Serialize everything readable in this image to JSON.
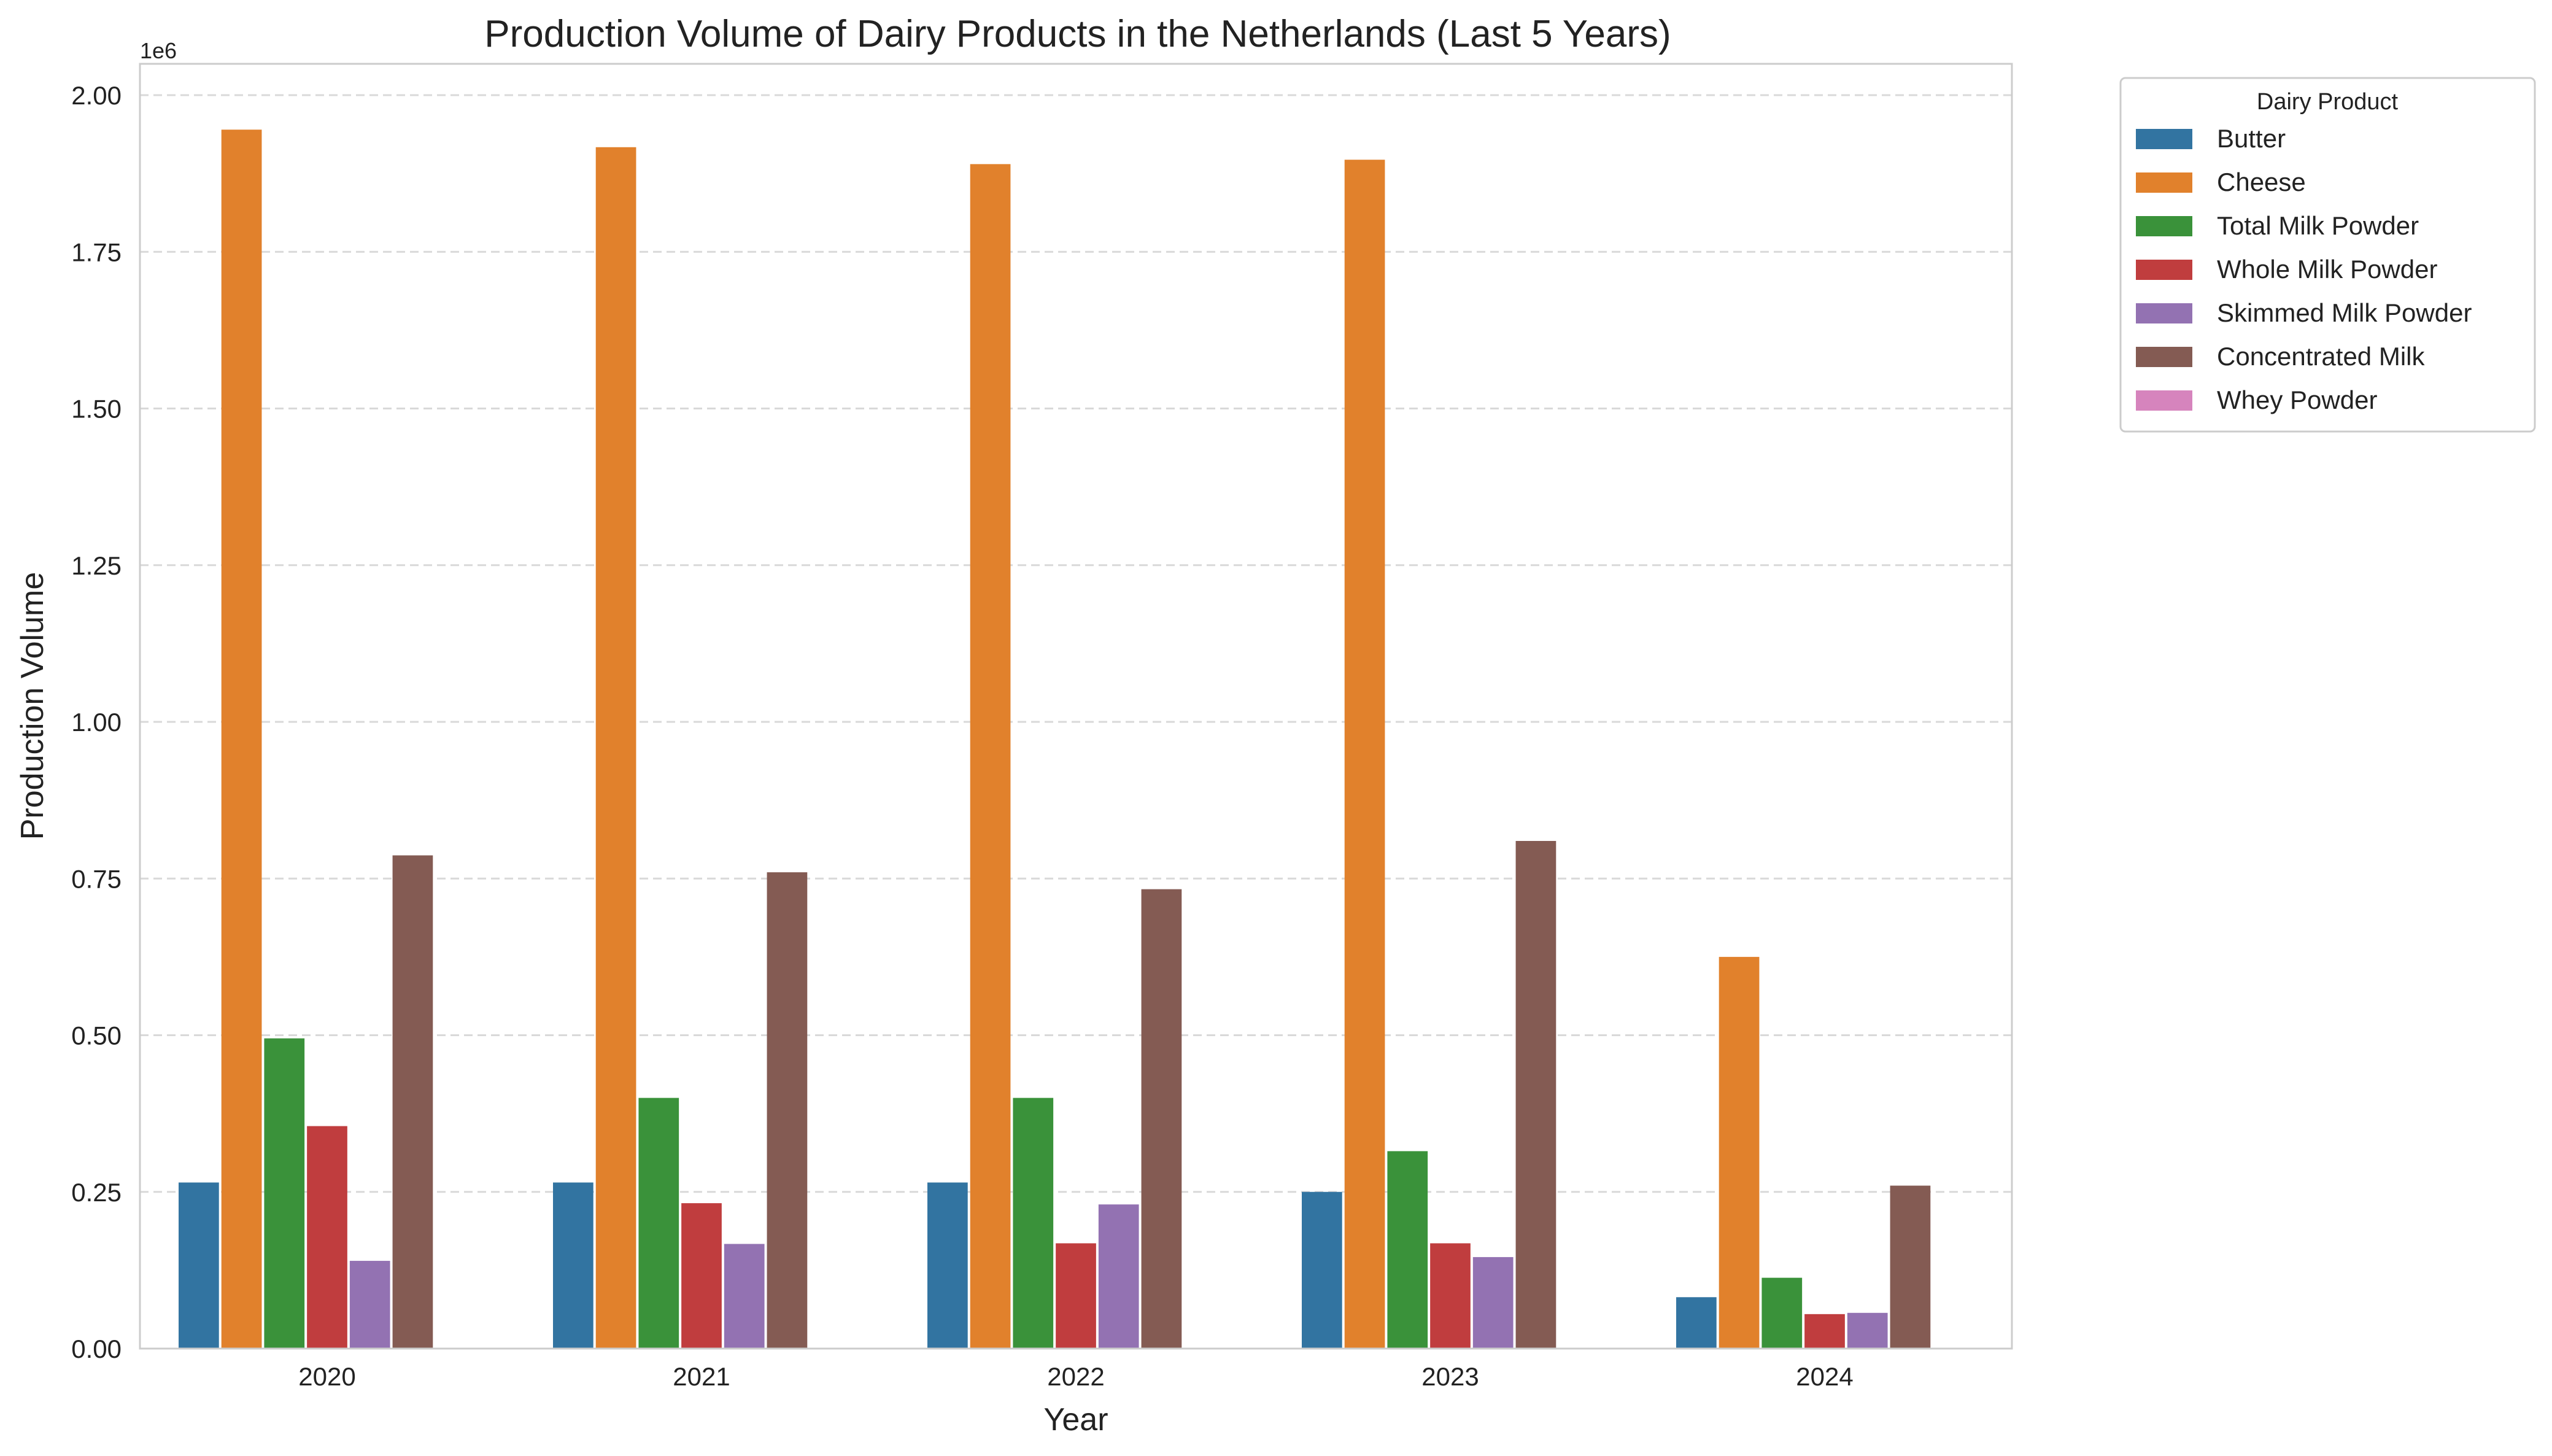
{
  "chart_data": {
    "type": "bar",
    "title": "Production Volume of Dairy Products in the Netherlands (Last 5 Years)",
    "xlabel": "Year",
    "ylabel": "Production Volume",
    "offset_label": "1e6",
    "categories": [
      "2020",
      "2021",
      "2022",
      "2023",
      "2024"
    ],
    "ylim": [
      0,
      2.05
    ],
    "yticks": [
      0.0,
      0.25,
      0.5,
      0.75,
      1.0,
      1.25,
      1.5,
      1.75,
      2.0
    ],
    "ytick_labels": [
      "0.00",
      "0.25",
      "0.50",
      "0.75",
      "1.00",
      "1.25",
      "1.50",
      "1.75",
      "2.00"
    ],
    "grid": "horizontal dashed",
    "legend": {
      "title": "Dairy Product",
      "placement": "outside upper-right"
    },
    "series": [
      {
        "name": "Butter",
        "color": "#3274a1",
        "values": [
          0.265,
          0.265,
          0.265,
          0.25,
          0.082
        ]
      },
      {
        "name": "Cheese",
        "color": "#e1812c",
        "values": [
          1.945,
          1.917,
          1.89,
          1.897,
          0.625
        ]
      },
      {
        "name": "Total Milk Powder",
        "color": "#3a923a",
        "values": [
          0.495,
          0.4,
          0.4,
          0.315,
          0.113
        ]
      },
      {
        "name": "Whole Milk Powder",
        "color": "#c03d3e",
        "values": [
          0.355,
          0.232,
          0.168,
          0.168,
          0.055
        ]
      },
      {
        "name": "Skimmed Milk Powder",
        "color": "#9372b2",
        "values": [
          0.14,
          0.167,
          0.23,
          0.146,
          0.057
        ]
      },
      {
        "name": "Concentrated Milk",
        "color": "#845b53",
        "values": [
          0.787,
          0.76,
          0.733,
          0.81,
          0.26
        ]
      },
      {
        "name": "Whey Powder",
        "color": "#d684bd",
        "values": [
          0,
          0,
          0,
          0,
          0
        ]
      }
    ]
  }
}
